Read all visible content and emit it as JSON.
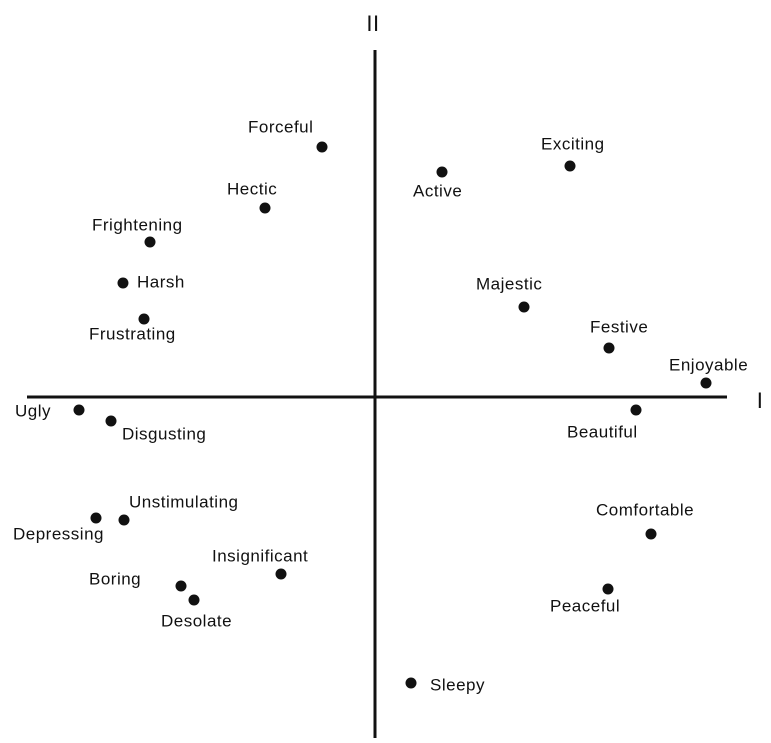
{
  "axes": {
    "vertical": "II",
    "horizontal": "I"
  },
  "nodes": [
    {
      "label": "Forceful"
    },
    {
      "label": "Hectic"
    },
    {
      "label": "Frightening"
    },
    {
      "label": "Harsh"
    },
    {
      "label": "Frustrating"
    },
    {
      "label": "Ugly"
    },
    {
      "label": "Disgusting"
    },
    {
      "label": "Unstimulating"
    },
    {
      "label": "Depressing"
    },
    {
      "label": "Boring"
    },
    {
      "label": "Desolate"
    },
    {
      "label": "Insignificant"
    },
    {
      "label": "Active"
    },
    {
      "label": "Exciting"
    },
    {
      "label": "Majestic"
    },
    {
      "label": "Festive"
    },
    {
      "label": "Enjoyable"
    },
    {
      "label": "Beautiful"
    },
    {
      "label": "Comfortable"
    },
    {
      "label": "Peaceful"
    },
    {
      "label": "Sleepy"
    }
  ]
}
